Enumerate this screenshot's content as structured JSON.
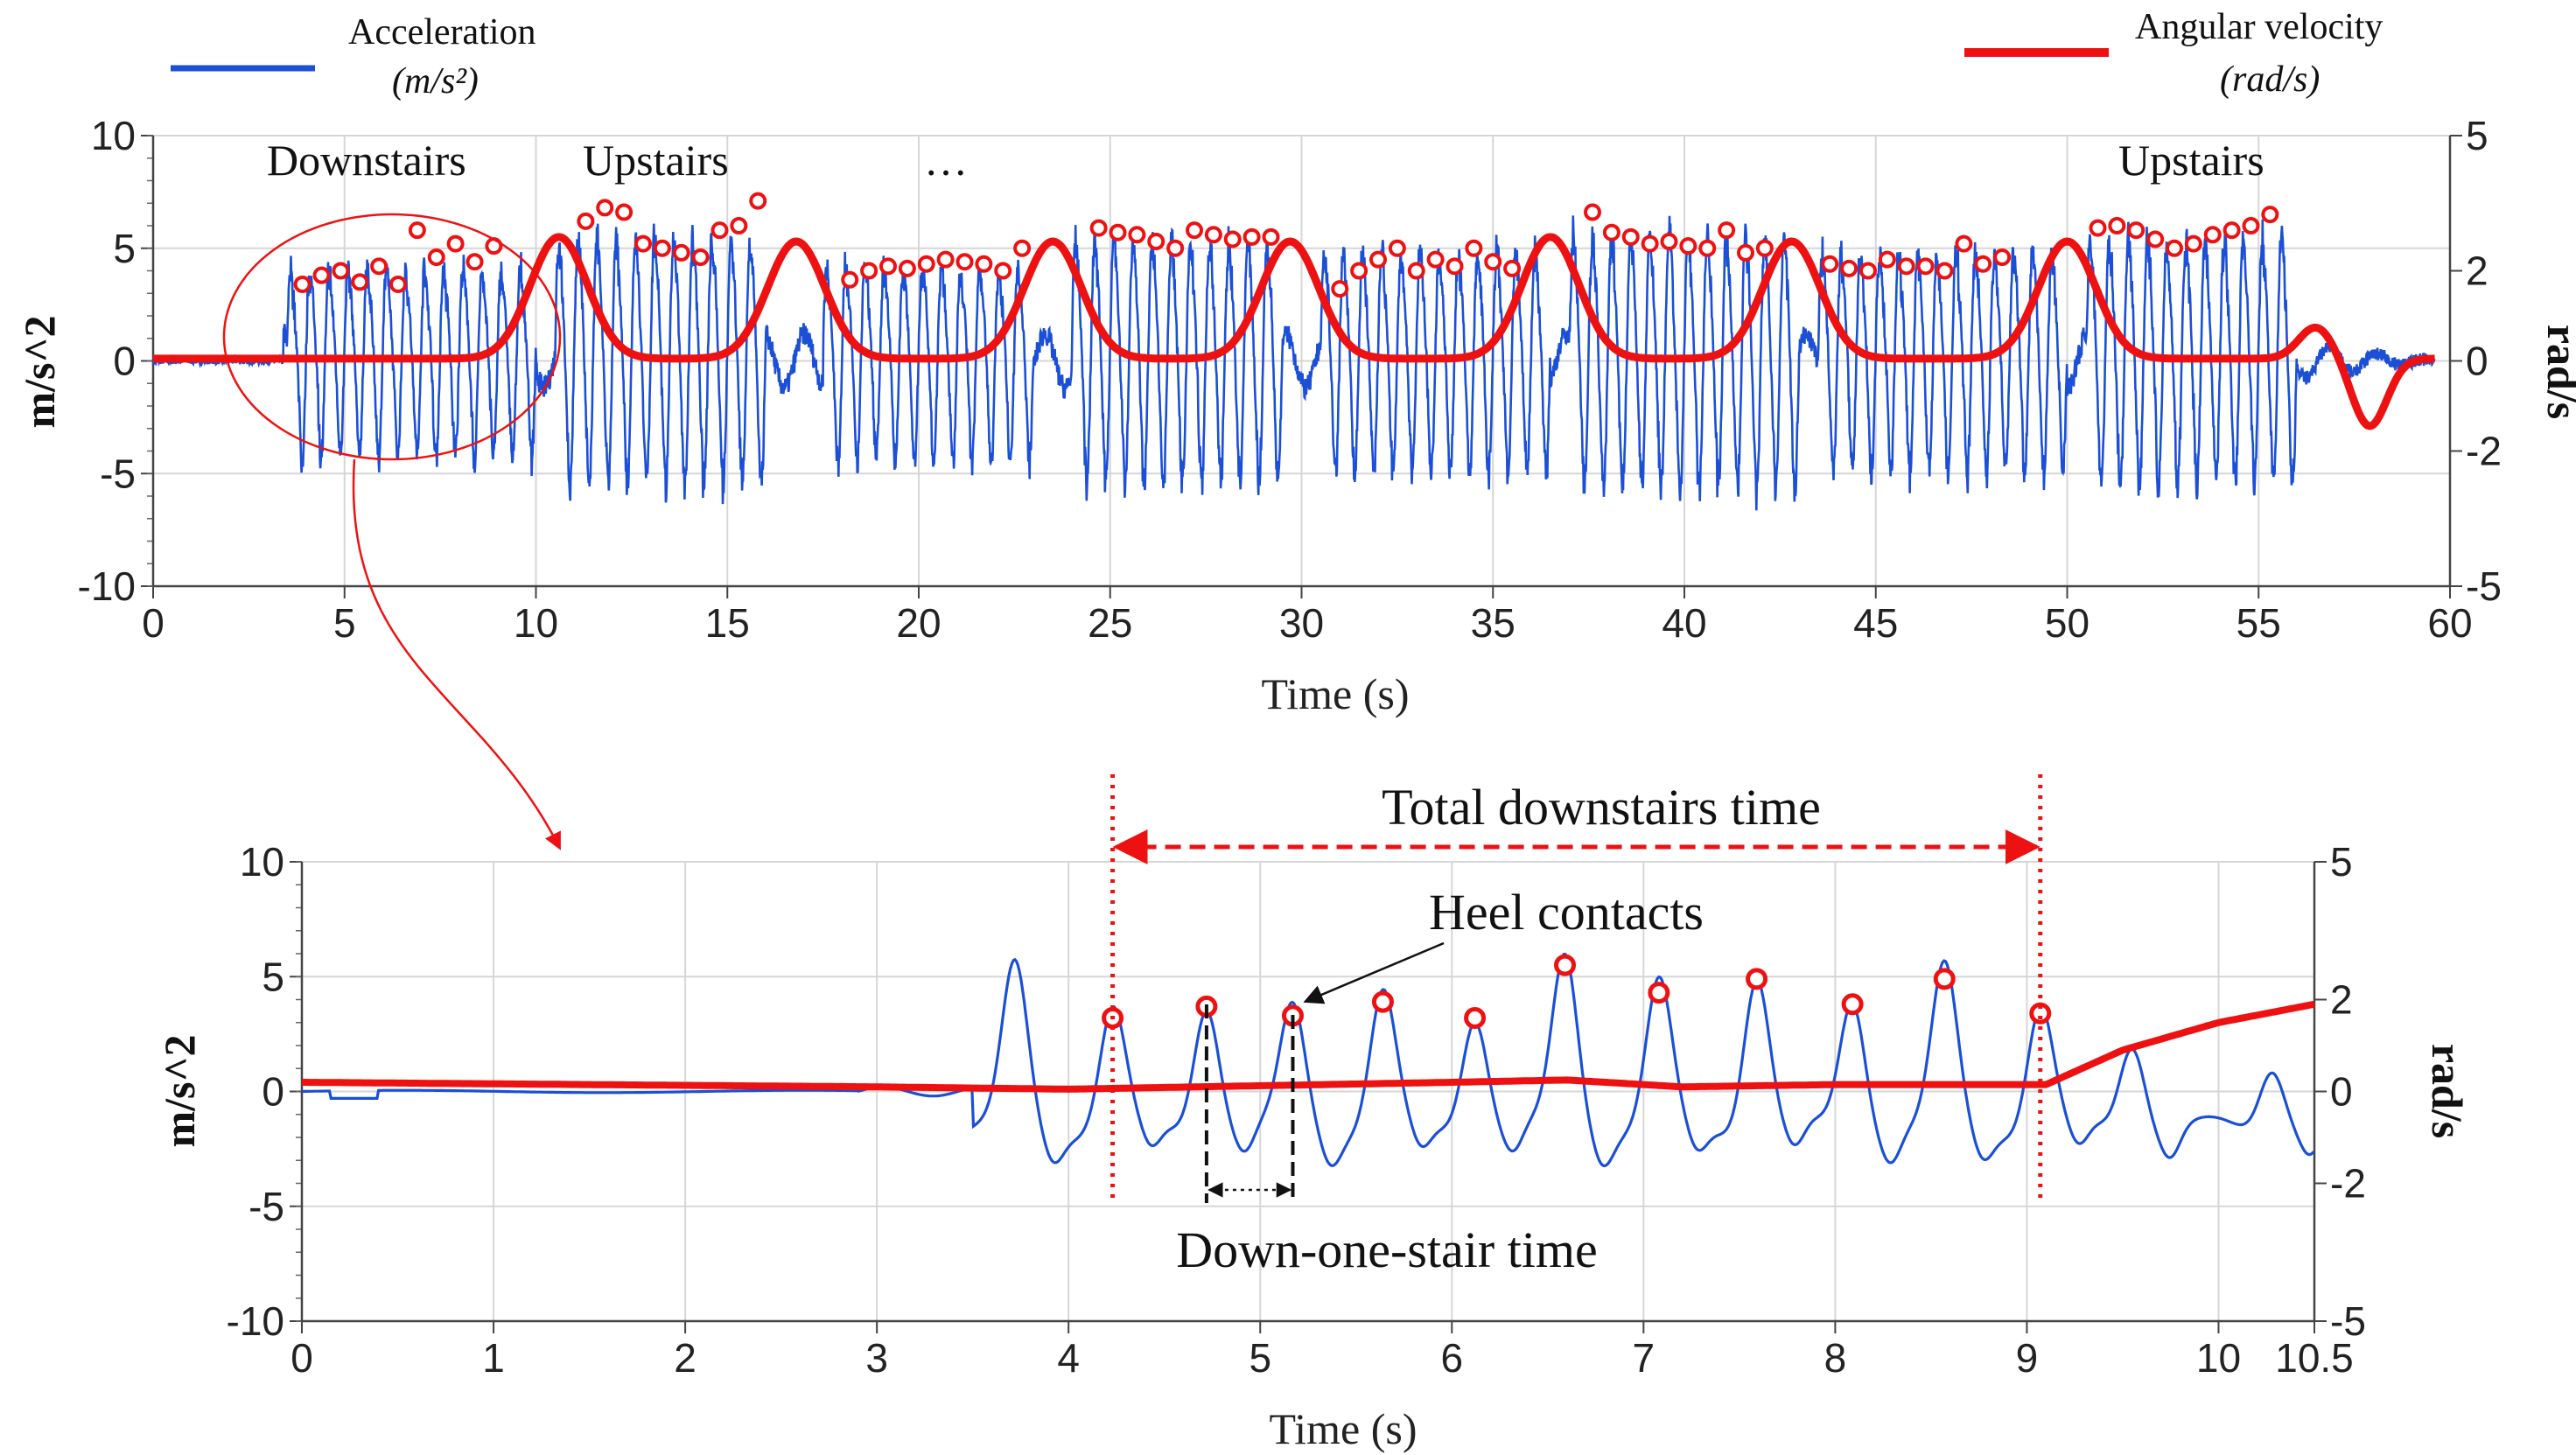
{
  "legend": {
    "acceleration": {
      "label": "Acceleration",
      "unit": "(m/s²)",
      "color": "#1a4fd6"
    },
    "angular_velocity": {
      "label": "Angular velocity",
      "unit": "(rad/s)",
      "color": "#ee1111"
    }
  },
  "annotations": {
    "downstairs": "Downstairs",
    "upstairs_1": "Upstairs",
    "ellipsis": "…",
    "upstairs_2": "Upstairs",
    "total_downstairs_time": "Total downstairs time",
    "heel_contacts": "Heel contacts",
    "down_one_stair_time": "Down-one-stair time"
  },
  "chart_data": [
    {
      "type": "line",
      "xlabel": "Time (s)",
      "ylabel": "m/s^2",
      "y2label": "rad/s",
      "xlim": [
        0,
        60
      ],
      "ylim": [
        -10,
        10
      ],
      "y2lim": [
        -5,
        5
      ],
      "x_ticks": [
        0,
        5,
        10,
        15,
        20,
        25,
        30,
        35,
        40,
        45,
        50,
        55,
        60
      ],
      "y_ticks": [
        10,
        5,
        0,
        -5,
        -10
      ],
      "y2_ticks": [
        5,
        2,
        0,
        -2,
        -5
      ],
      "y2_tick_labels": [
        "5",
        "2",
        "0",
        "-2",
        "-5"
      ],
      "grid": true,
      "series": [
        {
          "name": "Acceleration",
          "axis": "left",
          "color": "#1a4fd6",
          "segments": [
            {
              "start": 0,
              "end": 3.4,
              "amp": 0
            },
            {
              "start": 3.5,
              "end": 10.0,
              "amp": 4.2
            },
            {
              "start": 10.5,
              "end": 16.0,
              "amp": 5.6
            },
            {
              "start": 17.5,
              "end": 23.0,
              "amp": 4.4
            },
            {
              "start": 24.0,
              "end": 29.5,
              "amp": 5.5
            },
            {
              "start": 30.5,
              "end": 36.5,
              "amp": 5.0
            },
            {
              "start": 37.0,
              "end": 43.0,
              "amp": 5.8
            },
            {
              "start": 43.5,
              "end": 50.0,
              "amp": 5.0
            },
            {
              "start": 50.5,
              "end": 56.0,
              "amp": 5.6
            }
          ]
        },
        {
          "name": "Angular velocity",
          "axis": "right",
          "color": "#ee1111",
          "bumps": [
            {
              "t": 10.6,
              "peak": 2.7
            },
            {
              "t": 16.8,
              "peak": 2.6
            },
            {
              "t": 23.5,
              "peak": 2.6
            },
            {
              "t": 29.7,
              "peak": 2.6
            },
            {
              "t": 36.5,
              "peak": 2.7
            },
            {
              "t": 42.8,
              "peak": 2.6
            },
            {
              "t": 50.0,
              "peak": 2.6
            },
            {
              "t": 56.5,
              "peak": 0.7
            },
            {
              "t": 57.9,
              "peak": -1.5
            }
          ]
        }
      ],
      "heel_contact_markers": {
        "x": [
          3.9,
          4.4,
          4.9,
          5.4,
          5.9,
          6.4,
          6.9,
          7.4,
          7.9,
          8.4,
          8.9,
          11.3,
          11.8,
          12.3,
          12.8,
          13.3,
          13.8,
          14.3,
          14.8,
          15.3,
          15.8,
          18.2,
          18.7,
          19.2,
          19.7,
          20.2,
          20.7,
          21.2,
          21.7,
          22.2,
          22.7,
          24.7,
          25.2,
          25.7,
          26.2,
          26.7,
          27.2,
          27.7,
          28.2,
          28.7,
          29.2,
          31.0,
          31.5,
          32.0,
          32.5,
          33.0,
          33.5,
          34.0,
          34.5,
          35.0,
          35.5,
          37.6,
          38.1,
          38.6,
          39.1,
          39.6,
          40.1,
          40.6,
          41.1,
          41.6,
          42.1,
          43.8,
          44.3,
          44.8,
          45.3,
          45.8,
          46.3,
          46.8,
          47.3,
          47.8,
          48.3,
          50.8,
          51.3,
          51.8,
          52.3,
          52.8,
          53.3,
          53.8,
          54.3,
          54.8,
          55.3
        ],
        "y": [
          3.4,
          3.8,
          4.0,
          3.5,
          4.2,
          3.4,
          5.8,
          4.6,
          5.2,
          4.4,
          5.1,
          6.2,
          6.8,
          6.6,
          5.2,
          5.0,
          4.8,
          4.6,
          5.8,
          6.0,
          7.1,
          3.6,
          4.0,
          4.2,
          4.1,
          4.3,
          4.5,
          4.4,
          4.3,
          4.0,
          5.0,
          5.9,
          5.7,
          5.6,
          5.3,
          5.0,
          5.8,
          5.6,
          5.4,
          5.5,
          5.5,
          3.2,
          4.0,
          4.5,
          5.0,
          4.0,
          4.5,
          4.2,
          5.0,
          4.4,
          4.1,
          6.6,
          5.7,
          5.5,
          5.2,
          5.3,
          5.1,
          5.0,
          5.8,
          4.8,
          5.0,
          4.3,
          4.1,
          4.0,
          4.5,
          4.2,
          4.2,
          4.0,
          5.2,
          4.3,
          4.6,
          5.9,
          6.0,
          5.8,
          5.4,
          5.0,
          5.2,
          5.6,
          5.8,
          6.0,
          6.5
        ]
      }
    },
    {
      "type": "line",
      "xlabel": "Time (s)",
      "ylabel": "m/s^2",
      "y2label": "rad/s",
      "xlim": [
        0,
        10.5
      ],
      "ylim": [
        -10,
        10
      ],
      "y2lim": [
        -5,
        5
      ],
      "x_ticks": [
        0,
        1,
        2,
        3,
        4,
        5,
        6,
        7,
        8,
        9,
        10,
        10.5
      ],
      "x_tick_labels": [
        "0",
        "1",
        "2",
        "3",
        "4",
        "5",
        "6",
        "7",
        "8",
        "9",
        "10",
        "10.5"
      ],
      "y_ticks": [
        10,
        5,
        0,
        -5,
        -10
      ],
      "y2_ticks": [
        5,
        2,
        0,
        -2,
        -5
      ],
      "y2_tick_labels": [
        "5",
        "2",
        "0",
        "-2",
        "-5"
      ],
      "grid": true,
      "series": [
        {
          "name": "Acceleration",
          "axis": "left",
          "color": "#1a4fd6",
          "peaks_x": [
            3.72,
            4.23,
            4.72,
            5.17,
            5.64,
            6.12,
            6.59,
            7.08,
            7.59,
            8.09,
            8.57,
            9.07,
            9.55,
            10.28
          ],
          "peaks_y": [
            5.0,
            3.2,
            3.7,
            3.3,
            3.9,
            3.2,
            5.5,
            4.3,
            4.9,
            3.8,
            4.9,
            3.4,
            2.0,
            1.0
          ]
        },
        {
          "name": "Angular velocity",
          "axis": "right",
          "color": "#ee1111",
          "x": [
            0,
            3.0,
            4.0,
            6.0,
            6.6,
            7.2,
            8.0,
            9.1,
            9.5,
            10.0,
            10.5
          ],
          "y": [
            0.2,
            0.1,
            0.05,
            0.2,
            0.25,
            0.1,
            0.15,
            0.15,
            0.9,
            1.5,
            1.9
          ]
        }
      ],
      "heel_contact_markers": {
        "x": [
          4.23,
          4.72,
          5.17,
          5.64,
          6.12,
          6.59,
          7.08,
          7.59,
          8.09,
          8.57,
          9.07
        ],
        "y": [
          3.2,
          3.7,
          3.3,
          3.9,
          3.2,
          5.5,
          4.3,
          4.9,
          3.8,
          4.9,
          3.4
        ]
      },
      "total_downstairs_span": [
        4.23,
        9.07
      ],
      "one_stair_span": [
        4.72,
        5.17
      ]
    }
  ]
}
